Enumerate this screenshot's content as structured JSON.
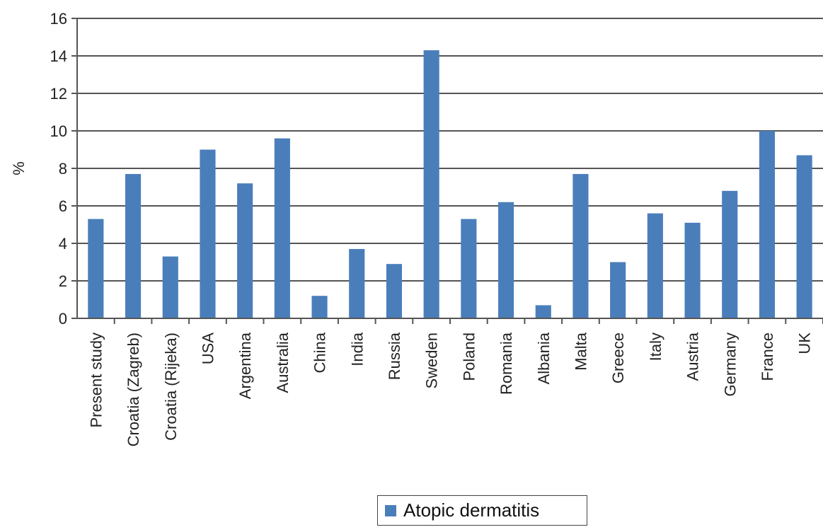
{
  "chart_data": {
    "type": "bar",
    "title": "",
    "xlabel": "",
    "ylabel": "%",
    "ylim": [
      0,
      16
    ],
    "yticks": [
      0,
      2,
      4,
      6,
      8,
      10,
      12,
      14,
      16
    ],
    "grid": true,
    "legend_position": "bottom",
    "categories": [
      "Present study",
      "Croatia (Zagreb)",
      "Croatia (Rijeka)",
      "USA",
      "Argentina",
      "Australia",
      "China",
      "India",
      "Russia",
      "Sweden",
      "Poland",
      "Romania",
      "Albania",
      "Malta",
      "Greece",
      "Italy",
      "Austria",
      "Germany",
      "France",
      "UK"
    ],
    "series": [
      {
        "name": "Atopic dermatitis",
        "color": "#4a7ebb",
        "values": [
          5.3,
          7.7,
          3.3,
          9.0,
          7.2,
          9.6,
          1.2,
          3.7,
          2.9,
          14.3,
          5.3,
          6.2,
          0.7,
          7.7,
          3.0,
          5.6,
          5.1,
          6.8,
          10.0,
          8.7
        ]
      }
    ]
  }
}
